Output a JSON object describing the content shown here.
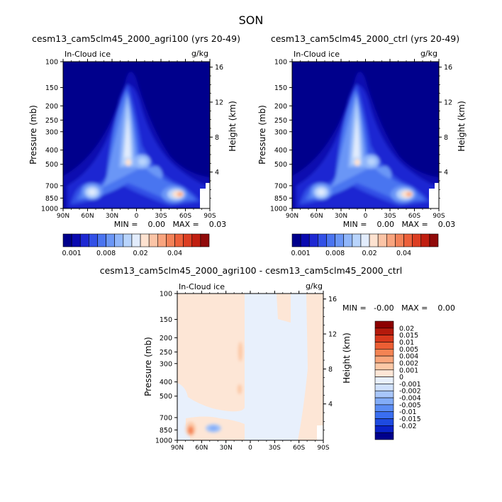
{
  "figure": {
    "season": "SON"
  },
  "panels": [
    {
      "id": "agri100",
      "title": "cesm13_cam5clm45_2000_agri100 (yrs 20-49)",
      "left_label": "In-Cloud ice",
      "right_label": "g/kg",
      "stats": "MIN =    0.00   MAX =    0.03"
    },
    {
      "id": "ctrl",
      "title": "cesm13_cam5clm45_2000_ctrl (yrs 20-49)",
      "left_label": "In-Cloud ice",
      "right_label": "g/kg",
      "stats": "MIN =    0.00   MAX =    0.03"
    },
    {
      "id": "diff",
      "title": "cesm13_cam5clm45_2000_agri100 - cesm13_cam5clm45_2000_ctrl",
      "left_label": "In-Cloud ice",
      "right_label": "g/kg",
      "stats": "MIN =   -0.00   MAX =    0.00"
    }
  ],
  "axes": {
    "ylabel": "Pressure (mb)",
    "y2label": "Height (km)",
    "pressure_ticks": [
      "100",
      "150",
      "200",
      "250",
      "300",
      "400",
      "500",
      "700",
      "850",
      "1000"
    ],
    "height_ticks": [
      "4",
      "8",
      "12",
      "16"
    ],
    "lat_ticks": [
      "90N",
      "60N",
      "30N",
      "0",
      "30S",
      "60S",
      "90S"
    ]
  },
  "colorbar_top": {
    "colors": [
      "#00008c",
      "#0a0ab0",
      "#1e28d2",
      "#3250e6",
      "#4a74f0",
      "#6a96f6",
      "#90b6fa",
      "#b8d4fc",
      "#e2ecfc",
      "#fde2d0",
      "#fbc4a6",
      "#f8a47e",
      "#f38258",
      "#ec603a",
      "#dc3e22",
      "#c01e10",
      "#900a0a"
    ],
    "labels": [
      "0.001",
      "0.008",
      "0.02",
      "0.04"
    ]
  },
  "colorbar_diff": {
    "colors": [
      "#00008c",
      "#0a22c8",
      "#1e4ae0",
      "#3a6ef0",
      "#5a8cf4",
      "#82acf8",
      "#a8c6fa",
      "#cfe0fc",
      "#e8f0fc",
      "#fde6d6",
      "#fcc8a6",
      "#f9a67c",
      "#f48454",
      "#ec5e34",
      "#d8381c",
      "#b41a0c",
      "#8c0000"
    ],
    "labels": [
      "0.02",
      "0.015",
      "0.01",
      "0.005",
      "0.004",
      "0.002",
      "0.001",
      "0",
      "-0.001",
      "-0.002",
      "-0.004",
      "-0.005",
      "-0.01",
      "-0.015",
      "-0.02"
    ]
  },
  "chart_data": [
    {
      "type": "heatmap",
      "title": "cesm13_cam5clm45_2000_agri100 (yrs 20-49)",
      "subtitle": "In-Cloud ice",
      "units": "g/kg",
      "xlabel": "",
      "ylabel": "Pressure (mb)",
      "y2label": "Height (km)",
      "x": [
        "90N",
        "60N",
        "30N",
        "0",
        "30S",
        "60S",
        "90S"
      ],
      "y": [
        100,
        150,
        200,
        250,
        300,
        400,
        500,
        700,
        850,
        1000
      ],
      "min": 0.0,
      "max": 0.03,
      "contour_levels": [
        0.001,
        0.002,
        0.004,
        0.006,
        0.008,
        0.01,
        0.012,
        0.015,
        0.02,
        0.025,
        0.03,
        0.035,
        0.04,
        0.045,
        0.05,
        0.06
      ]
    },
    {
      "type": "heatmap",
      "title": "cesm13_cam5clm45_2000_ctrl (yrs 20-49)",
      "subtitle": "In-Cloud ice",
      "units": "g/kg",
      "xlabel": "",
      "ylabel": "Pressure (mb)",
      "y2label": "Height (km)",
      "x": [
        "90N",
        "60N",
        "30N",
        "0",
        "30S",
        "60S",
        "90S"
      ],
      "y": [
        100,
        150,
        200,
        250,
        300,
        400,
        500,
        700,
        850,
        1000
      ],
      "min": 0.0,
      "max": 0.03,
      "contour_levels": [
        0.001,
        0.002,
        0.004,
        0.006,
        0.008,
        0.01,
        0.012,
        0.015,
        0.02,
        0.025,
        0.03,
        0.035,
        0.04,
        0.045,
        0.05,
        0.06
      ]
    },
    {
      "type": "heatmap",
      "title": "cesm13_cam5clm45_2000_agri100 - cesm13_cam5clm45_2000_ctrl",
      "subtitle": "In-Cloud ice",
      "units": "g/kg",
      "xlabel": "",
      "ylabel": "Pressure (mb)",
      "y2label": "Height (km)",
      "x": [
        "90N",
        "60N",
        "30N",
        "0",
        "30S",
        "60S",
        "90S"
      ],
      "y": [
        100,
        150,
        200,
        250,
        300,
        400,
        500,
        700,
        850,
        1000
      ],
      "min": -0.0,
      "max": 0.0,
      "contour_levels": [
        -0.02,
        -0.015,
        -0.01,
        -0.005,
        -0.004,
        -0.002,
        -0.001,
        0,
        0.001,
        0.002,
        0.004,
        0.005,
        0.01,
        0.015,
        0.02
      ]
    }
  ]
}
